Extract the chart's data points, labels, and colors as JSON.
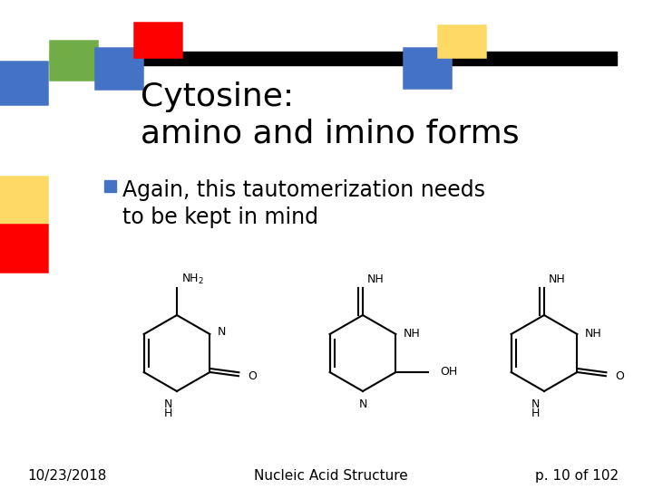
{
  "title_line1": "Cytosine:",
  "title_line2": "amino and imino forms",
  "bullet_text_line1": "Again, this tautomerization needs",
  "bullet_text_line2": "to be kept in mind",
  "footer_left": "10/23/2018",
  "footer_center": "Nucleic Acid Structure",
  "footer_right": "p. 10 of 102",
  "bg_color": "#ffffff",
  "title_color": "#000000",
  "bullet_color": "#000000",
  "bullet_marker_color": "#4472c4",
  "footer_color": "#000000",
  "deco_bar_color": "#000000",
  "title_fontsize": 26,
  "bullet_fontsize": 17,
  "footer_fontsize": 11
}
